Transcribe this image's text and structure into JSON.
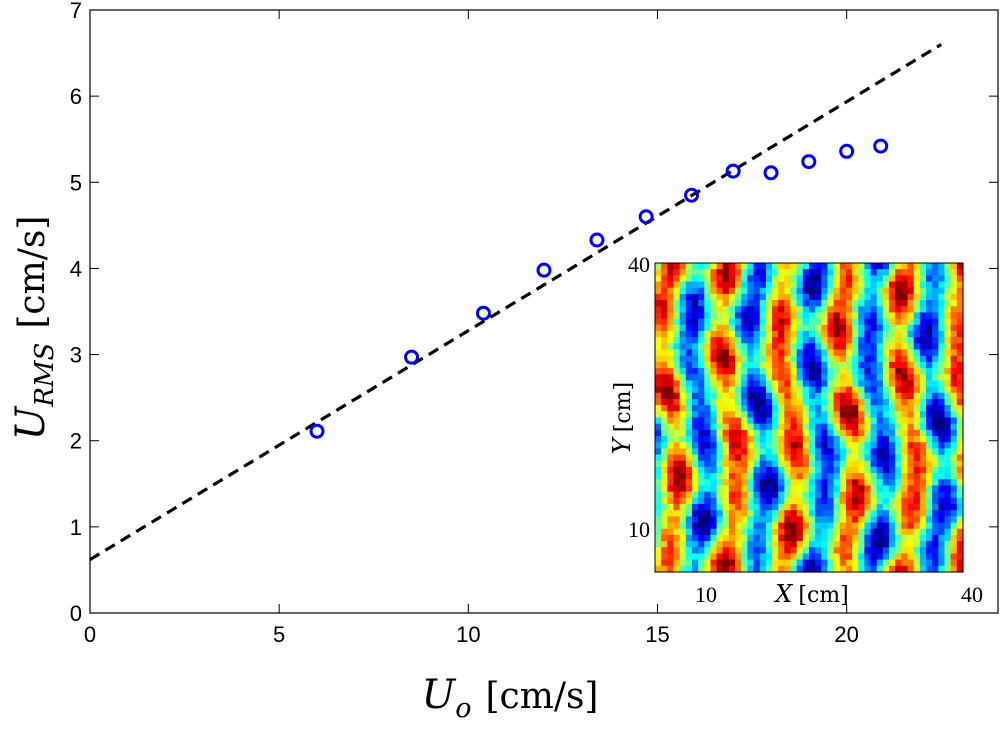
{
  "chart_data": {
    "type": "scatter",
    "x_axis": {
      "label": "U",
      "label_subscript": "o",
      "unit": "[cm/s]",
      "range": [
        0,
        24
      ],
      "ticks": [
        "0",
        "5",
        "10",
        "15",
        "20"
      ]
    },
    "y_axis": {
      "label": "U",
      "label_subscript": "RMS",
      "unit": "[cm/s]",
      "range": [
        0,
        7
      ],
      "ticks": [
        "0",
        "1",
        "2",
        "3",
        "4",
        "5",
        "6",
        "7"
      ]
    },
    "series": [
      {
        "marker": "open-circle",
        "color": "#0000ff",
        "points": [
          {
            "x": 6.0,
            "y": 2.11
          },
          {
            "x": 8.5,
            "y": 2.97
          },
          {
            "x": 10.4,
            "y": 3.48
          },
          {
            "x": 12.0,
            "y": 3.98
          },
          {
            "x": 13.4,
            "y": 4.33
          },
          {
            "x": 14.7,
            "y": 4.6
          },
          {
            "x": 15.9,
            "y": 4.85
          },
          {
            "x": 17.0,
            "y": 5.13
          },
          {
            "x": 18.0,
            "y": 5.11
          },
          {
            "x": 19.0,
            "y": 5.24
          },
          {
            "x": 20.0,
            "y": 5.36
          },
          {
            "x": 20.9,
            "y": 5.42
          }
        ]
      }
    ],
    "fit_line": {
      "style": "dashed",
      "color": "#000000",
      "x": [
        0,
        22.5
      ],
      "y": [
        0.62,
        6.6
      ]
    },
    "grid": false,
    "inset": {
      "type": "heatmap",
      "colormap": "jet",
      "x_label": "X",
      "x_unit": "[cm]",
      "y_label": "Y",
      "y_unit": "[cm]",
      "x_ticks": [
        "10",
        "40"
      ],
      "y_ticks": [
        "10",
        "40"
      ]
    }
  }
}
